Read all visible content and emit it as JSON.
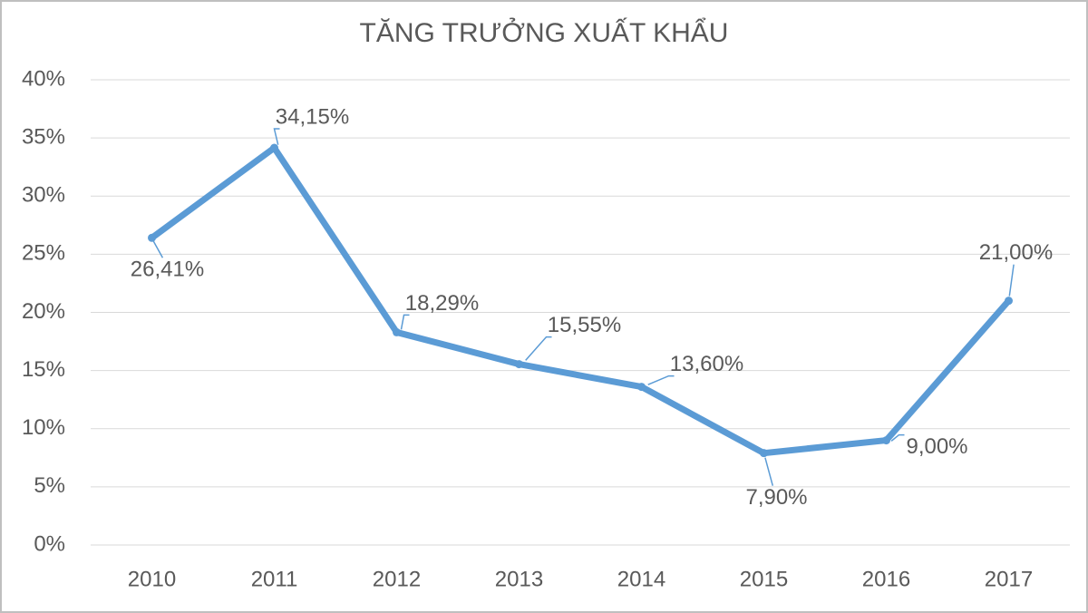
{
  "chart_data": {
    "type": "line",
    "title": "TĂNG TRƯỞNG XUẤT KHẨU",
    "categories": [
      "2010",
      "2011",
      "2012",
      "2013",
      "2014",
      "2015",
      "2016",
      "2017"
    ],
    "values": [
      26.41,
      34.15,
      18.29,
      15.55,
      13.6,
      7.9,
      9.0,
      21.0
    ],
    "value_labels": [
      "26,41%",
      "34,15%",
      "18,29%",
      "15,55%",
      "13,60%",
      "7,90%",
      "9,00%",
      "21,00%"
    ],
    "color": "#5b9bd5",
    "ylim": [
      0,
      40
    ],
    "yticks": [
      {
        "value": 0,
        "label": "0%"
      },
      {
        "value": 5,
        "label": "5%"
      },
      {
        "value": 10,
        "label": "10%"
      },
      {
        "value": 15,
        "label": "15%"
      },
      {
        "value": 20,
        "label": "20%"
      },
      {
        "value": 25,
        "label": "25%"
      },
      {
        "value": 30,
        "label": "30%"
      },
      {
        "value": 35,
        "label": "35%"
      },
      {
        "value": 40,
        "label": "40%"
      }
    ],
    "grid": true
  }
}
